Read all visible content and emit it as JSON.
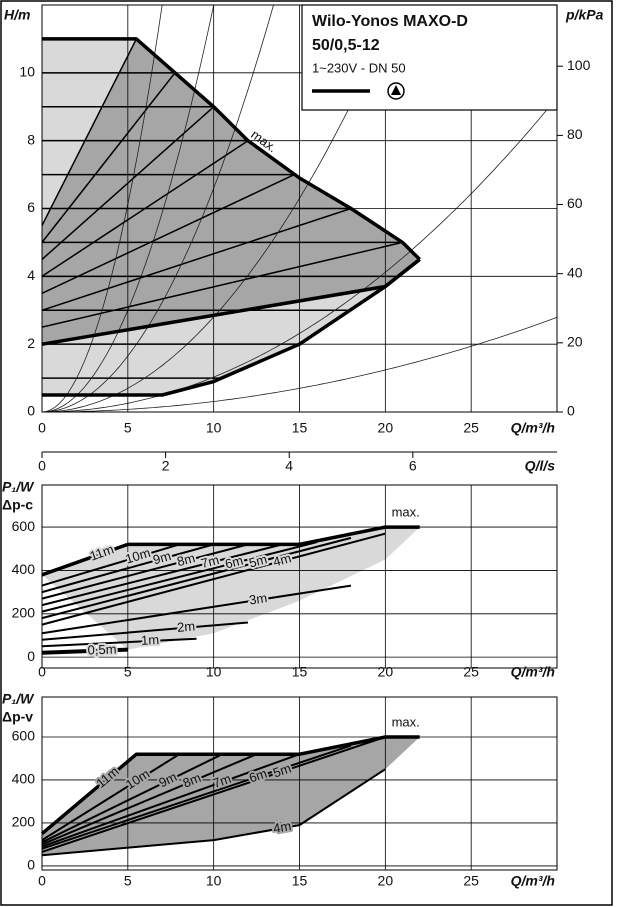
{
  "chart_data": [
    {
      "type": "line",
      "title": "Wilo-Yonos MAXO-D",
      "subtitle": "50/0,5-12",
      "annotation": "1~230V - DN 50",
      "ylabel": "H/m",
      "y2label": "p/kPa",
      "xlabel": "Q/m³/h",
      "x2label": "Q/l/s",
      "xlim": [
        0,
        30
      ],
      "xticks": [
        0,
        5,
        10,
        15,
        20,
        25
      ],
      "ylim": [
        0,
        12
      ],
      "yticks": [
        0,
        2,
        4,
        6,
        8,
        10
      ],
      "y2lim": [
        0,
        117.7
      ],
      "y2ticks": [
        0,
        20,
        40,
        60,
        80,
        100
      ],
      "x2lim": [
        0,
        8.333
      ],
      "x2ticks": [
        0,
        2,
        4,
        6
      ],
      "grid": true,
      "series": [
        {
          "name": "max.",
          "color": "#000000",
          "x": [
            0,
            5.5,
            10,
            12,
            15,
            18,
            21,
            22
          ],
          "values": [
            11,
            11,
            9,
            8,
            6.9,
            6,
            5,
            4.5
          ]
        },
        {
          "color": "#000000",
          "x": [
            0,
            7,
            10,
            15,
            20,
            22
          ],
          "values": [
            0.5,
            0.5,
            0.9,
            2,
            3.7,
            4.5
          ]
        },
        {
          "color": "#000000",
          "x": [
            0,
            20,
            22
          ],
          "values": [
            2,
            3.7,
            4.5
          ]
        }
      ],
      "dpc_levels": [
        1,
        2,
        3,
        4,
        5,
        6,
        7,
        8,
        9,
        10,
        11
      ],
      "dpv_lines": [
        {
          "x": [
            0,
            5.5
          ],
          "values": [
            5.5,
            11
          ]
        },
        {
          "x": [
            0,
            7.75
          ],
          "values": [
            5,
            10
          ]
        },
        {
          "x": [
            0,
            10
          ],
          "values": [
            4.5,
            9
          ]
        },
        {
          "x": [
            0,
            12
          ],
          "values": [
            4,
            8
          ]
        },
        {
          "x": [
            0,
            14.7
          ],
          "values": [
            3.5,
            7
          ]
        },
        {
          "x": [
            0,
            18
          ],
          "values": [
            3,
            6
          ]
        },
        {
          "x": [
            0,
            21
          ],
          "values": [
            2.5,
            5
          ]
        }
      ],
      "system_curves": [
        0.245,
        0.12,
        0.066,
        0.028,
        0.0103,
        0.0031
      ]
    },
    {
      "type": "line",
      "ylabel": "P₁/W",
      "subtitle": "Δp-c",
      "xlabel": "Q/m³/h",
      "xlim": [
        0,
        30
      ],
      "xticks": [
        0,
        5,
        10,
        15,
        20,
        25
      ],
      "ylim": [
        -50,
        794
      ],
      "yticks": [
        0,
        200,
        400,
        600
      ],
      "grid": true,
      "fill": "#d9d9d9",
      "area": {
        "x": [
          5,
          10,
          15,
          20,
          22
        ],
        "values": [
          35,
          110,
          260,
          450,
          600
        ]
      },
      "series": [
        {
          "name": "max.",
          "x": [
            0,
            5,
            15,
            20,
            22
          ],
          "values": [
            380,
            520,
            520,
            600,
            600
          ]
        },
        {
          "name": "11m",
          "x": [
            0,
            5
          ],
          "values": [
            380,
            520
          ]
        },
        {
          "name": "10m",
          "x": [
            0,
            8
          ],
          "values": [
            330,
            520
          ]
        },
        {
          "name": "9m",
          "x": [
            0,
            10
          ],
          "values": [
            300,
            520
          ]
        },
        {
          "name": "8m",
          "x": [
            0,
            12
          ],
          "values": [
            270,
            520
          ]
        },
        {
          "name": "7m",
          "x": [
            0,
            14
          ],
          "values": [
            240,
            520
          ]
        },
        {
          "name": "6m",
          "x": [
            0,
            16
          ],
          "values": [
            210,
            530
          ]
        },
        {
          "name": "5m",
          "x": [
            0,
            18
          ],
          "values": [
            180,
            550
          ]
        },
        {
          "name": "4m",
          "x": [
            0,
            20
          ],
          "values": [
            150,
            570
          ]
        },
        {
          "name": "3m",
          "x": [
            0,
            18
          ],
          "values": [
            110,
            330
          ]
        },
        {
          "name": "2m",
          "x": [
            0,
            12
          ],
          "values": [
            80,
            160
          ]
        },
        {
          "name": "1m",
          "x": [
            0,
            9
          ],
          "values": [
            50,
            85
          ]
        },
        {
          "name": "0,5m",
          "x": [
            0,
            5
          ],
          "values": [
            20,
            35
          ]
        }
      ]
    },
    {
      "type": "line",
      "ylabel": "P₁/W",
      "subtitle": "Δp-v",
      "xlabel": "Q/m³/h",
      "xlim": [
        0,
        30
      ],
      "xticks": [
        0,
        5,
        10,
        15,
        20,
        25
      ],
      "ylim": [
        -19,
        786
      ],
      "yticks": [
        0,
        200,
        400,
        600
      ],
      "grid": true,
      "fill": "#a6a6a6",
      "series": [
        {
          "name": "max.",
          "x": [
            0,
            5.5,
            15,
            20,
            22
          ],
          "values": [
            150,
            520,
            520,
            600,
            600
          ]
        },
        {
          "name": "11m",
          "x": [
            0,
            5.5
          ],
          "values": [
            150,
            520
          ]
        },
        {
          "name": "10m",
          "x": [
            0,
            8
          ],
          "values": [
            120,
            520
          ]
        },
        {
          "name": "9m",
          "x": [
            0,
            10.5
          ],
          "values": [
            110,
            520
          ]
        },
        {
          "name": "8m",
          "x": [
            0,
            12.5
          ],
          "values": [
            100,
            520
          ]
        },
        {
          "name": "7m",
          "x": [
            0,
            15
          ],
          "values": [
            90,
            520
          ]
        },
        {
          "name": "6m",
          "x": [
            0,
            18
          ],
          "values": [
            80,
            560
          ]
        },
        {
          "name": "5m",
          "x": [
            0,
            20
          ],
          "values": [
            65,
            600
          ]
        },
        {
          "name": "4m",
          "x": [
            0,
            10,
            15,
            20
          ],
          "values": [
            50,
            120,
            190,
            450
          ]
        }
      ]
    }
  ]
}
